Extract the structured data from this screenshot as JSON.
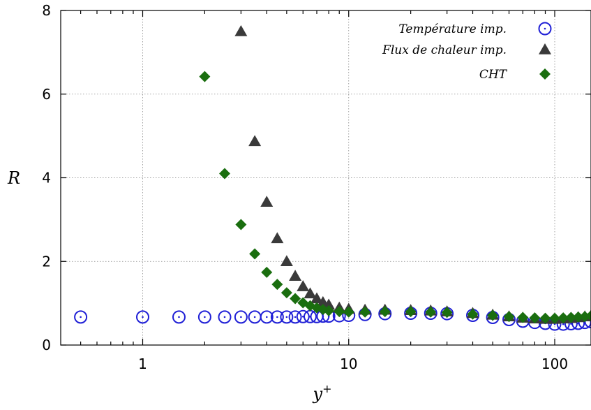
{
  "chart_data": {
    "type": "scatter",
    "xlabel": "y",
    "xlabel_sup": "+",
    "ylabel": "R",
    "xscale": "log",
    "xlim": [
      0.4,
      150
    ],
    "ylim": [
      0,
      8
    ],
    "xticks": [
      1,
      10,
      100
    ],
    "xtick_labels": [
      "1",
      "10",
      "100"
    ],
    "yticks": [
      0,
      2,
      4,
      6,
      8
    ],
    "ytick_labels": [
      "0",
      "2",
      "4",
      "6",
      "8"
    ],
    "grid": true,
    "legend_position": "top-right",
    "series": [
      {
        "name": "Température imp.",
        "marker": "circle-dot",
        "color": "#1f1fd6",
        "x": [
          0.5,
          1.0,
          1.5,
          2.0,
          2.5,
          3.0,
          3.5,
          4.0,
          4.5,
          5.0,
          5.5,
          6.0,
          6.5,
          7.0,
          7.5,
          8.0,
          9.0,
          10.0,
          12.0,
          15.0,
          20.0,
          25.0,
          30.0,
          40.0,
          50.0,
          60.0,
          70.0,
          80.0,
          90.0,
          100.0,
          110.0,
          120.0,
          130.0,
          140.0,
          150.0
        ],
        "y": [
          0.67,
          0.67,
          0.67,
          0.67,
          0.67,
          0.67,
          0.67,
          0.67,
          0.67,
          0.67,
          0.67,
          0.68,
          0.68,
          0.68,
          0.69,
          0.69,
          0.7,
          0.71,
          0.73,
          0.75,
          0.76,
          0.76,
          0.75,
          0.71,
          0.66,
          0.61,
          0.57,
          0.54,
          0.52,
          0.5,
          0.5,
          0.51,
          0.52,
          0.54,
          0.56
        ]
      },
      {
        "name": "Flux de chaleur imp.",
        "marker": "triangle",
        "color": "#3a3a3a",
        "x": [
          3.0,
          3.5,
          4.0,
          4.5,
          5.0,
          5.5,
          6.0,
          6.5,
          7.0,
          7.5,
          8.0,
          9.0,
          10.0,
          12.0,
          15.0,
          20.0,
          25.0,
          30.0,
          40.0,
          50.0,
          60.0,
          70.0,
          80.0,
          90.0,
          100.0,
          110.0,
          120.0,
          130.0,
          140.0,
          150.0
        ],
        "y": [
          7.5,
          4.87,
          3.42,
          2.55,
          2.0,
          1.65,
          1.4,
          1.23,
          1.11,
          1.02,
          0.96,
          0.89,
          0.86,
          0.84,
          0.84,
          0.83,
          0.82,
          0.8,
          0.76,
          0.72,
          0.68,
          0.65,
          0.63,
          0.62,
          0.62,
          0.63,
          0.64,
          0.66,
          0.68,
          0.7
        ]
      },
      {
        "name": "CHT",
        "marker": "diamond",
        "color": "#1a6e0f",
        "x": [
          2.0,
          2.5,
          3.0,
          3.5,
          4.0,
          4.5,
          5.0,
          5.5,
          6.0,
          6.5,
          7.0,
          7.5,
          8.0,
          9.0,
          10.0,
          12.0,
          15.0,
          20.0,
          25.0,
          30.0,
          40.0,
          50.0,
          60.0,
          70.0,
          80.0,
          90.0,
          100.0,
          110.0,
          120.0,
          130.0,
          140.0,
          150.0
        ],
        "y": [
          6.42,
          4.1,
          2.88,
          2.18,
          1.74,
          1.45,
          1.25,
          1.11,
          1.01,
          0.94,
          0.89,
          0.85,
          0.82,
          0.8,
          0.79,
          0.79,
          0.8,
          0.8,
          0.79,
          0.78,
          0.74,
          0.71,
          0.68,
          0.66,
          0.65,
          0.64,
          0.64,
          0.65,
          0.66,
          0.67,
          0.68,
          0.7
        ]
      }
    ]
  }
}
